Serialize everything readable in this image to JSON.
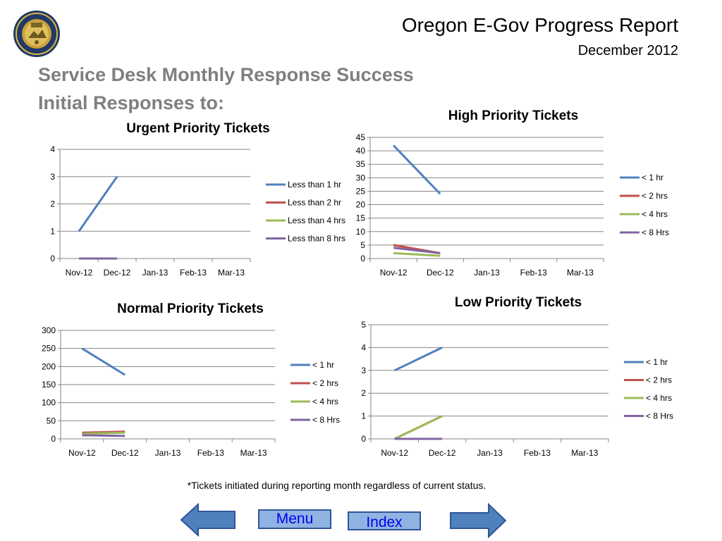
{
  "header": {
    "title": "Oregon E-Gov Progress Report",
    "date": "December 2012",
    "main_title_line1": "Service Desk Monthly Response Success",
    "main_title_line2": "Initial Responses to:"
  },
  "footnote": "*Tickets initiated  during reporting month regardless of current status.",
  "nav": {
    "menu_label": "Menu",
    "index_label": "Index"
  },
  "colors": {
    "s1": "#4f81bd",
    "s2": "#c0504d",
    "s3": "#9bbb59",
    "s4": "#8064a2",
    "grid": "#868686"
  },
  "chart_data": [
    {
      "type": "line",
      "title": "Urgent Priority Tickets",
      "categories": [
        "Nov-12",
        "Dec-12",
        "Jan-13",
        "Feb-13",
        "Mar-13"
      ],
      "ylim": [
        0,
        4
      ],
      "yticks": [
        0,
        1,
        2,
        3,
        4
      ],
      "grid": true,
      "legend": "right",
      "series": [
        {
          "name": "Less than 1 hr",
          "values": [
            1,
            3,
            null,
            null,
            null
          ]
        },
        {
          "name": "Less than 2 hr",
          "values": [
            0,
            0,
            null,
            null,
            null
          ]
        },
        {
          "name": "Less than 4 hrs",
          "values": [
            0,
            0,
            null,
            null,
            null
          ]
        },
        {
          "name": "Less than 8 hrs",
          "values": [
            0,
            0,
            null,
            null,
            null
          ]
        }
      ]
    },
    {
      "type": "line",
      "title": "High Priority Tickets",
      "categories": [
        "Nov-12",
        "Dec-12",
        "Jan-13",
        "Feb-13",
        "Mar-13"
      ],
      "ylim": [
        0,
        45
      ],
      "yticks": [
        0,
        5,
        10,
        15,
        20,
        25,
        30,
        35,
        40,
        45
      ],
      "grid": true,
      "legend": "right",
      "series": [
        {
          "name": "< 1 hr",
          "values": [
            42,
            24,
            null,
            null,
            null
          ]
        },
        {
          "name": "< 2 hrs",
          "values": [
            5,
            2,
            null,
            null,
            null
          ]
        },
        {
          "name": "< 4 hrs",
          "values": [
            2,
            1,
            null,
            null,
            null
          ]
        },
        {
          "name": "< 8 Hrs",
          "values": [
            4,
            2,
            null,
            null,
            null
          ]
        }
      ]
    },
    {
      "type": "line",
      "title": "Normal Priority Tickets",
      "categories": [
        "Nov-12",
        "Dec-12",
        "Jan-13",
        "Feb-13",
        "Mar-13"
      ],
      "ylim": [
        0,
        300
      ],
      "yticks": [
        0,
        50,
        100,
        150,
        200,
        250,
        300
      ],
      "grid": true,
      "legend": "right",
      "series": [
        {
          "name": "< 1 hr",
          "values": [
            250,
            177,
            null,
            null,
            null
          ]
        },
        {
          "name": "< 2 hrs",
          "values": [
            17,
            20,
            null,
            null,
            null
          ]
        },
        {
          "name": "< 4 hrs",
          "values": [
            14,
            17,
            null,
            null,
            null
          ]
        },
        {
          "name": "< 8 Hrs",
          "values": [
            10,
            8,
            null,
            null,
            null
          ]
        }
      ]
    },
    {
      "type": "line",
      "title": "Low Priority Tickets",
      "categories": [
        "Nov-12",
        "Dec-12",
        "Jan-13",
        "Feb-13",
        "Mar-13"
      ],
      "ylim": [
        0,
        5
      ],
      "yticks": [
        0,
        1,
        2,
        3,
        4,
        5
      ],
      "grid": true,
      "legend": "right",
      "series": [
        {
          "name": "< 1 hr",
          "values": [
            3,
            4,
            null,
            null,
            null
          ]
        },
        {
          "name": "< 2 hrs",
          "values": [
            0,
            1,
            null,
            null,
            null
          ]
        },
        {
          "name": "< 4 hrs",
          "values": [
            0,
            1,
            null,
            null,
            null
          ]
        },
        {
          "name": "< 8 Hrs",
          "values": [
            0,
            0,
            null,
            null,
            null
          ]
        }
      ]
    }
  ]
}
